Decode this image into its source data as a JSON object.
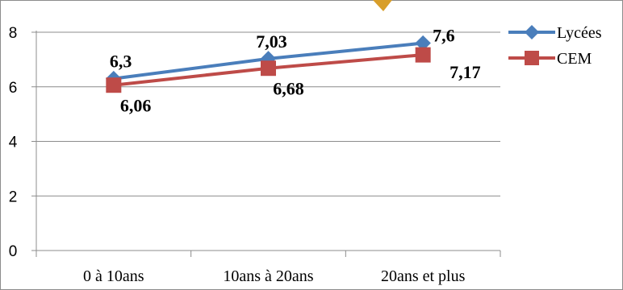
{
  "chart_data": {
    "type": "line",
    "title": "",
    "xlabel": "",
    "ylabel": "",
    "categories": [
      "0 à 10ans",
      "10ans à 20ans",
      "20ans et plus"
    ],
    "ylim": [
      0,
      8
    ],
    "yticks": [
      0,
      2,
      4,
      6,
      8
    ],
    "grid": true,
    "legend_position": "right",
    "series": [
      {
        "name": "Lycées",
        "values": [
          6.3,
          7.03,
          7.6
        ],
        "labels": [
          "6,3",
          "7,03",
          "7,6"
        ],
        "color": "#4a7ebb",
        "marker": "diamond"
      },
      {
        "name": "CEM",
        "values": [
          6.06,
          6.68,
          7.17
        ],
        "labels": [
          "6,06",
          "6,68",
          "7,17"
        ],
        "color": "#be4b48",
        "marker": "square"
      }
    ]
  },
  "colors": {
    "grid": "#8c8c8c",
    "axis": "#8c8c8c",
    "frame": "#8c8c8c",
    "decoration": "#d89e2a"
  }
}
